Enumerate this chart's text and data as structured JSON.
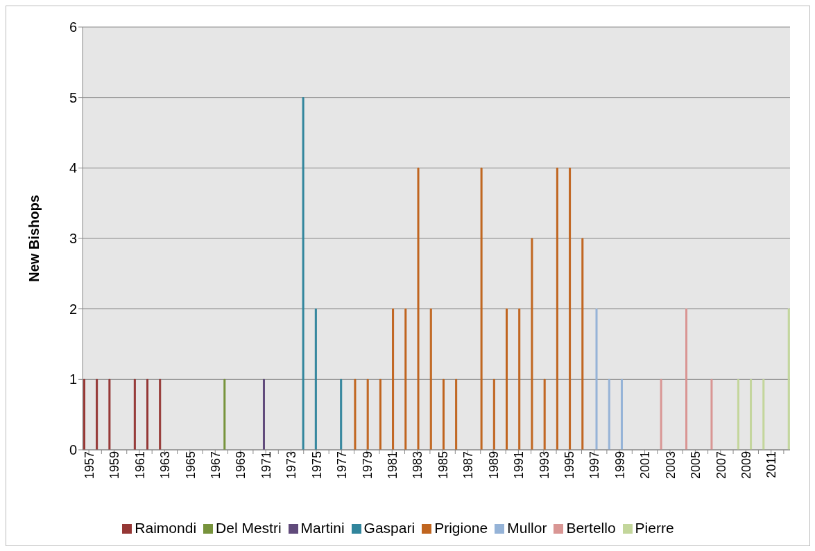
{
  "chart_data": {
    "type": "bar",
    "ylabel": "New Bishops",
    "categories": [
      "1957",
      null,
      "1959",
      null,
      "1961",
      null,
      "1963",
      null,
      "1965",
      null,
      "1967",
      null,
      "1969",
      null,
      "1971",
      null,
      "1973",
      null,
      "1975",
      null,
      "1977",
      null,
      "1979",
      null,
      "1981",
      null,
      "1983",
      null,
      "1985",
      null,
      "1987",
      null,
      "1989",
      null,
      "1991",
      null,
      "1993",
      null,
      "1995",
      null,
      "1997",
      null,
      "1999",
      null,
      "2001",
      null,
      "2003",
      null,
      "2005",
      null,
      "2007",
      null,
      "2009",
      null,
      "2011",
      null
    ],
    "series": [
      {
        "name": "Raimondi",
        "color": "#953735",
        "values": [
          1,
          1,
          1,
          null,
          1,
          1,
          1,
          null,
          null,
          null,
          null,
          null,
          null,
          null,
          null,
          null,
          null,
          null,
          null,
          null,
          null,
          null,
          null,
          null,
          null,
          null,
          null,
          null,
          null,
          null,
          null,
          null,
          null,
          null,
          null,
          null,
          null,
          null,
          null,
          null,
          null,
          null,
          null,
          null,
          null,
          null,
          null,
          null,
          null,
          null,
          null,
          null,
          null,
          null,
          null,
          null
        ]
      },
      {
        "name": "Del Mestri",
        "color": "#77933c",
        "values": [
          null,
          null,
          null,
          null,
          null,
          null,
          null,
          null,
          null,
          null,
          null,
          1,
          null,
          null,
          null,
          null,
          null,
          null,
          null,
          null,
          null,
          null,
          null,
          null,
          null,
          null,
          null,
          null,
          null,
          null,
          null,
          null,
          null,
          null,
          null,
          null,
          null,
          null,
          null,
          null,
          null,
          null,
          null,
          null,
          null,
          null,
          null,
          null,
          null,
          null,
          null,
          null,
          null,
          null,
          null,
          null
        ]
      },
      {
        "name": "Martini",
        "color": "#604a7b",
        "values": [
          null,
          null,
          null,
          null,
          null,
          null,
          null,
          null,
          null,
          null,
          null,
          null,
          null,
          null,
          1,
          null,
          null,
          null,
          null,
          null,
          null,
          null,
          null,
          null,
          null,
          null,
          null,
          null,
          null,
          null,
          null,
          null,
          null,
          null,
          null,
          null,
          null,
          null,
          null,
          null,
          null,
          null,
          null,
          null,
          null,
          null,
          null,
          null,
          null,
          null,
          null,
          null,
          null,
          null,
          null,
          null
        ]
      },
      {
        "name": "Gaspari",
        "color": "#31859c",
        "values": [
          null,
          null,
          null,
          null,
          null,
          null,
          null,
          null,
          null,
          null,
          null,
          null,
          null,
          null,
          null,
          null,
          null,
          5,
          2,
          null,
          1,
          null,
          null,
          null,
          null,
          null,
          null,
          null,
          null,
          null,
          null,
          null,
          null,
          null,
          null,
          null,
          null,
          null,
          null,
          null,
          null,
          null,
          null,
          null,
          null,
          null,
          null,
          null,
          null,
          null,
          null,
          null,
          null,
          null,
          null,
          null
        ]
      },
      {
        "name": "Prigione",
        "color": "#c0651f",
        "values": [
          null,
          null,
          null,
          null,
          null,
          null,
          null,
          null,
          null,
          null,
          null,
          null,
          null,
          null,
          null,
          null,
          null,
          null,
          null,
          null,
          null,
          1,
          1,
          1,
          2,
          2,
          4,
          2,
          1,
          1,
          null,
          4,
          1,
          2,
          2,
          3,
          1,
          4,
          4,
          3,
          null,
          null,
          null,
          null,
          null,
          null,
          null,
          null,
          null,
          null,
          null,
          null,
          null,
          null,
          null,
          null
        ]
      },
      {
        "name": "Mullor",
        "color": "#95b3d7",
        "values": [
          null,
          null,
          null,
          null,
          null,
          null,
          null,
          null,
          null,
          null,
          null,
          null,
          null,
          null,
          null,
          null,
          null,
          null,
          null,
          null,
          null,
          null,
          null,
          null,
          null,
          null,
          null,
          null,
          null,
          null,
          null,
          null,
          null,
          null,
          null,
          null,
          null,
          null,
          null,
          null,
          2,
          1,
          1,
          null,
          null,
          null,
          null,
          null,
          null,
          null,
          null,
          null,
          null,
          null,
          null,
          null
        ]
      },
      {
        "name": "Bertello",
        "color": "#d99694",
        "values": [
          null,
          null,
          null,
          null,
          null,
          null,
          null,
          null,
          null,
          null,
          null,
          null,
          null,
          null,
          null,
          null,
          null,
          null,
          null,
          null,
          null,
          null,
          null,
          null,
          null,
          null,
          null,
          null,
          null,
          null,
          null,
          null,
          null,
          null,
          null,
          null,
          null,
          null,
          null,
          null,
          null,
          null,
          null,
          null,
          null,
          1,
          null,
          2,
          null,
          1,
          null,
          null,
          null,
          null,
          null,
          null
        ]
      },
      {
        "name": "Pierre",
        "color": "#c3d69b",
        "values": [
          null,
          null,
          null,
          null,
          null,
          null,
          null,
          null,
          null,
          null,
          null,
          null,
          null,
          null,
          null,
          null,
          null,
          null,
          null,
          null,
          null,
          null,
          null,
          null,
          null,
          null,
          null,
          null,
          null,
          null,
          null,
          null,
          null,
          null,
          null,
          null,
          null,
          null,
          null,
          null,
          null,
          null,
          null,
          null,
          null,
          null,
          null,
          null,
          null,
          null,
          null,
          1,
          1,
          1,
          null,
          2
        ]
      }
    ],
    "ylim": [
      0,
      6
    ],
    "yticks": [
      0,
      1,
      2,
      3,
      4,
      5,
      6
    ],
    "grid": "y",
    "legend": "bottom"
  }
}
